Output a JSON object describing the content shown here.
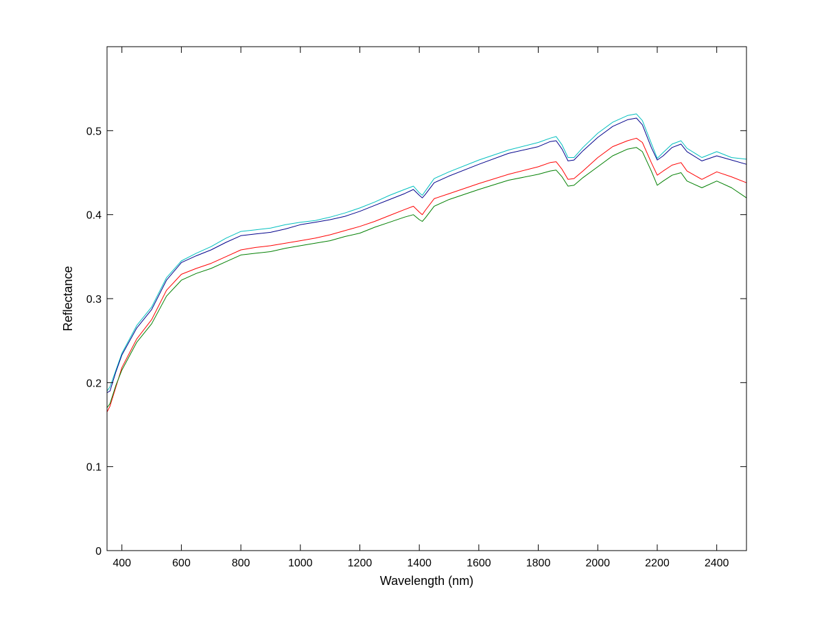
{
  "chart_data": {
    "type": "line",
    "title": "",
    "xlabel": "Wavelength (nm)",
    "ylabel": "Reflectance",
    "xlim": [
      350,
      2500
    ],
    "ylim": [
      0,
      0.6
    ],
    "xticks": [
      400,
      600,
      800,
      1000,
      1200,
      1400,
      1600,
      1800,
      2000,
      2200,
      2400
    ],
    "yticks": [
      0,
      0.1,
      0.2,
      0.3,
      0.4,
      0.5
    ],
    "xtick_labels": [
      "400",
      "600",
      "800",
      "1000",
      "1200",
      "1400",
      "1600",
      "1800",
      "2000",
      "2200",
      "2400"
    ],
    "ytick_labels": [
      "0",
      "0.1",
      "0.2",
      "0.3",
      "0.4",
      "0.5"
    ],
    "grid": false,
    "legend": "none",
    "series": [
      {
        "color": "#00bfbf",
        "x": [
          350,
          360,
          380,
          400,
          450,
          500,
          550,
          600,
          650,
          700,
          750,
          800,
          850,
          900,
          950,
          1000,
          1050,
          1100,
          1150,
          1200,
          1250,
          1300,
          1350,
          1380,
          1400,
          1410,
          1420,
          1450,
          1500,
          1600,
          1700,
          1800,
          1840,
          1860,
          1880,
          1900,
          1920,
          1950,
          2000,
          2050,
          2100,
          2130,
          2150,
          2180,
          2200,
          2220,
          2250,
          2280,
          2300,
          2350,
          2400,
          2450,
          2500
        ],
        "y": [
          0.19,
          0.195,
          0.215,
          0.235,
          0.268,
          0.29,
          0.325,
          0.345,
          0.354,
          0.362,
          0.372,
          0.38,
          0.382,
          0.384,
          0.388,
          0.391,
          0.393,
          0.397,
          0.402,
          0.408,
          0.415,
          0.423,
          0.43,
          0.434,
          0.426,
          0.423,
          0.428,
          0.443,
          0.451,
          0.465,
          0.477,
          0.486,
          0.491,
          0.493,
          0.483,
          0.468,
          0.468,
          0.48,
          0.497,
          0.51,
          0.518,
          0.52,
          0.512,
          0.485,
          0.467,
          0.474,
          0.484,
          0.488,
          0.479,
          0.468,
          0.475,
          0.468,
          0.466
        ]
      },
      {
        "color": "#00008b",
        "x": [
          350,
          360,
          380,
          400,
          450,
          500,
          550,
          600,
          650,
          700,
          750,
          800,
          850,
          900,
          950,
          1000,
          1050,
          1100,
          1150,
          1200,
          1250,
          1300,
          1350,
          1380,
          1400,
          1410,
          1420,
          1450,
          1500,
          1600,
          1700,
          1800,
          1840,
          1860,
          1880,
          1900,
          1920,
          1950,
          2000,
          2050,
          2100,
          2130,
          2150,
          2180,
          2200,
          2220,
          2250,
          2280,
          2300,
          2350,
          2400,
          2450,
          2500
        ],
        "y": [
          0.188,
          0.19,
          0.213,
          0.233,
          0.265,
          0.287,
          0.322,
          0.343,
          0.351,
          0.358,
          0.367,
          0.375,
          0.377,
          0.379,
          0.383,
          0.388,
          0.391,
          0.394,
          0.398,
          0.404,
          0.411,
          0.418,
          0.425,
          0.43,
          0.423,
          0.42,
          0.424,
          0.438,
          0.446,
          0.46,
          0.473,
          0.481,
          0.487,
          0.488,
          0.478,
          0.464,
          0.465,
          0.476,
          0.492,
          0.505,
          0.513,
          0.515,
          0.507,
          0.48,
          0.465,
          0.47,
          0.48,
          0.484,
          0.475,
          0.464,
          0.47,
          0.465,
          0.46
        ]
      },
      {
        "color": "#ff0000",
        "x": [
          350,
          360,
          380,
          400,
          450,
          500,
          550,
          600,
          650,
          700,
          750,
          800,
          850,
          900,
          950,
          1000,
          1050,
          1100,
          1150,
          1200,
          1250,
          1300,
          1350,
          1380,
          1400,
          1410,
          1420,
          1450,
          1500,
          1600,
          1700,
          1800,
          1840,
          1860,
          1880,
          1900,
          1920,
          1950,
          2000,
          2050,
          2100,
          2130,
          2150,
          2180,
          2200,
          2220,
          2250,
          2280,
          2300,
          2350,
          2400,
          2450,
          2500
        ],
        "y": [
          0.165,
          0.172,
          0.195,
          0.218,
          0.252,
          0.275,
          0.31,
          0.329,
          0.336,
          0.342,
          0.35,
          0.358,
          0.361,
          0.363,
          0.366,
          0.369,
          0.372,
          0.376,
          0.381,
          0.386,
          0.392,
          0.399,
          0.406,
          0.41,
          0.403,
          0.4,
          0.405,
          0.419,
          0.425,
          0.437,
          0.448,
          0.457,
          0.462,
          0.463,
          0.454,
          0.442,
          0.443,
          0.452,
          0.468,
          0.481,
          0.488,
          0.491,
          0.486,
          0.462,
          0.447,
          0.452,
          0.459,
          0.462,
          0.452,
          0.442,
          0.451,
          0.445,
          0.438
        ]
      },
      {
        "color": "#007f00",
        "x": [
          350,
          360,
          380,
          400,
          450,
          500,
          550,
          600,
          650,
          700,
          750,
          800,
          850,
          900,
          950,
          1000,
          1050,
          1100,
          1150,
          1200,
          1250,
          1300,
          1350,
          1380,
          1400,
          1410,
          1420,
          1450,
          1500,
          1600,
          1700,
          1800,
          1840,
          1860,
          1880,
          1900,
          1920,
          1950,
          2000,
          2050,
          2100,
          2130,
          2150,
          2180,
          2200,
          2220,
          2250,
          2280,
          2300,
          2350,
          2400,
          2450,
          2500
        ],
        "y": [
          0.17,
          0.175,
          0.197,
          0.215,
          0.248,
          0.27,
          0.303,
          0.322,
          0.33,
          0.336,
          0.344,
          0.352,
          0.354,
          0.356,
          0.36,
          0.363,
          0.366,
          0.369,
          0.374,
          0.378,
          0.385,
          0.391,
          0.397,
          0.4,
          0.394,
          0.392,
          0.396,
          0.41,
          0.418,
          0.43,
          0.441,
          0.448,
          0.452,
          0.453,
          0.445,
          0.434,
          0.435,
          0.444,
          0.457,
          0.47,
          0.478,
          0.48,
          0.475,
          0.452,
          0.435,
          0.44,
          0.447,
          0.45,
          0.44,
          0.432,
          0.44,
          0.432,
          0.42
        ]
      }
    ]
  }
}
